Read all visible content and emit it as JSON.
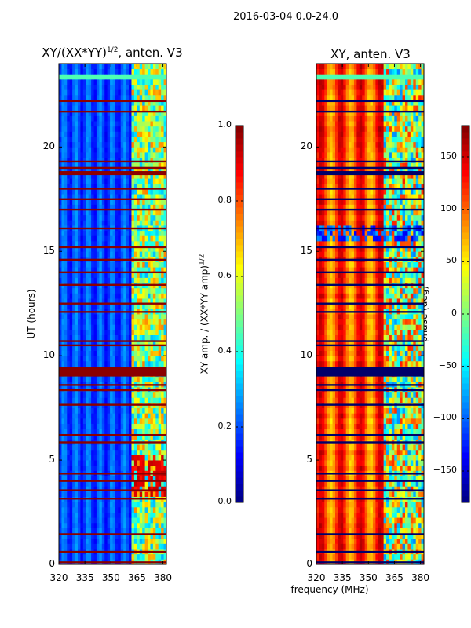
{
  "suptitle": "2016-03-04 0.0-24.0",
  "chart_data": [
    {
      "type": "heatmap",
      "title": "XY/(XX*YY)",
      "title_sup": "1/2",
      "title_suffix": ", anten. V3",
      "xlabel": "",
      "ylabel": "UT (hours)",
      "xlim": [
        320,
        382
      ],
      "ylim": [
        0,
        24
      ],
      "xticks": [
        320,
        335,
        350,
        365,
        380
      ],
      "yticks": [
        0,
        5,
        10,
        15,
        20
      ],
      "colorbar": {
        "label": "XY amp. / (XX*YY amp)",
        "label_sup": "1/2",
        "range": [
          0.0,
          1.0
        ],
        "ticks": [
          "0.0",
          "0.2",
          "0.4",
          "0.6",
          "0.8",
          "1.0"
        ],
        "tick_values": [
          0.0,
          0.2,
          0.4,
          0.6,
          0.8,
          1.0
        ]
      },
      "colormap": "jet",
      "flagged_rows_ut": [
        0.1,
        0.6,
        1.45,
        3.15,
        3.55,
        4.0,
        4.35,
        5.85,
        6.2,
        7.65,
        8.35,
        8.6,
        9.05,
        9.2,
        9.3,
        9.4,
        10.5,
        10.7,
        12.1,
        12.5,
        13.4,
        14.0,
        14.6,
        15.2,
        16.1,
        17.0,
        17.5,
        18.0,
        18.7,
        18.8,
        19.0,
        19.3,
        21.7,
        22.2
      ]
    },
    {
      "type": "heatmap",
      "title": "XY, anten. V3",
      "xlabel": "frequency (MHz)",
      "ylabel": "",
      "xlim": [
        320,
        382
      ],
      "ylim": [
        0,
        24
      ],
      "xticks": [
        320,
        335,
        350,
        365,
        380
      ],
      "yticks": [
        0,
        5,
        10,
        15,
        20
      ],
      "colorbar": {
        "label": "phase (deg)",
        "range": [
          -180,
          180
        ],
        "ticks": [
          "−150",
          "−100",
          "−50",
          "0",
          "50",
          "100",
          "150"
        ],
        "tick_values": [
          -150,
          -100,
          -50,
          0,
          50,
          100,
          150
        ]
      },
      "colormap": "jet",
      "flagged_rows_ut": [
        0.1,
        0.6,
        1.45,
        3.15,
        3.55,
        4.0,
        4.35,
        5.85,
        6.2,
        7.65,
        8.35,
        8.6,
        9.05,
        9.2,
        9.3,
        9.4,
        10.5,
        10.7,
        12.1,
        12.5,
        13.4,
        14.0,
        14.6,
        15.2,
        16.1,
        17.0,
        17.5,
        18.0,
        18.7,
        18.8,
        19.0,
        19.3,
        21.7,
        22.2
      ]
    }
  ]
}
